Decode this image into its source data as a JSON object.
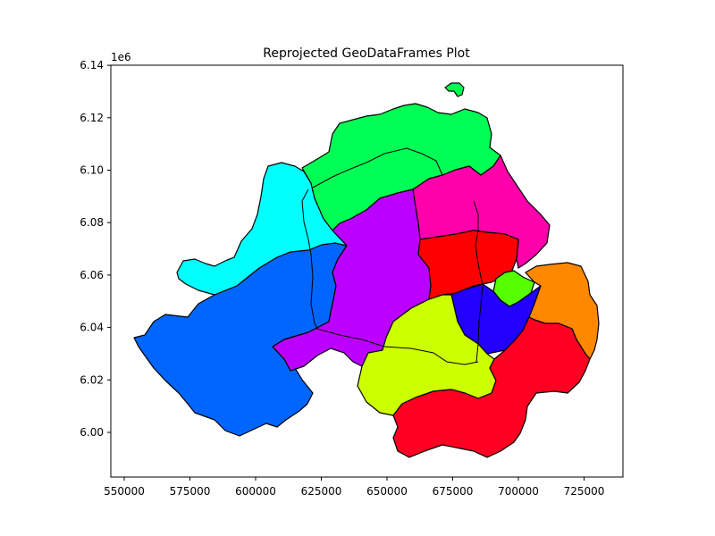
{
  "chart_data": {
    "type": "map",
    "title": "Reprojected GeoDataFrames Plot",
    "x_ticks": [
      "550000",
      "575000",
      "600000",
      "625000",
      "650000",
      "675000",
      "700000",
      "725000"
    ],
    "y_ticks": [
      "6.00",
      "6.02",
      "6.04",
      "6.06",
      "6.08",
      "6.10",
      "6.12",
      "6.14"
    ],
    "y_offset_label": "1e6",
    "xlim": [
      545000,
      740000
    ],
    "ylim": [
      5983000,
      6140000
    ],
    "grid": false,
    "regions": [
      {
        "id": "west",
        "color": "#0066ff"
      },
      {
        "id": "northwest",
        "color": "#00ffff"
      },
      {
        "id": "north",
        "color": "#00ff55"
      },
      {
        "id": "northeast",
        "color": "#ff00aa"
      },
      {
        "id": "central",
        "color": "#bb00ff"
      },
      {
        "id": "center-east",
        "color": "#ff0000"
      },
      {
        "id": "small-green",
        "color": "#55ff00"
      },
      {
        "id": "blue-east",
        "color": "#2200ff"
      },
      {
        "id": "orange-east",
        "color": "#ff8800"
      },
      {
        "id": "south-central",
        "color": "#ccff00"
      },
      {
        "id": "south",
        "color": "#ff0022"
      },
      {
        "id": "north-islet",
        "color": "#00ff55"
      }
    ]
  }
}
